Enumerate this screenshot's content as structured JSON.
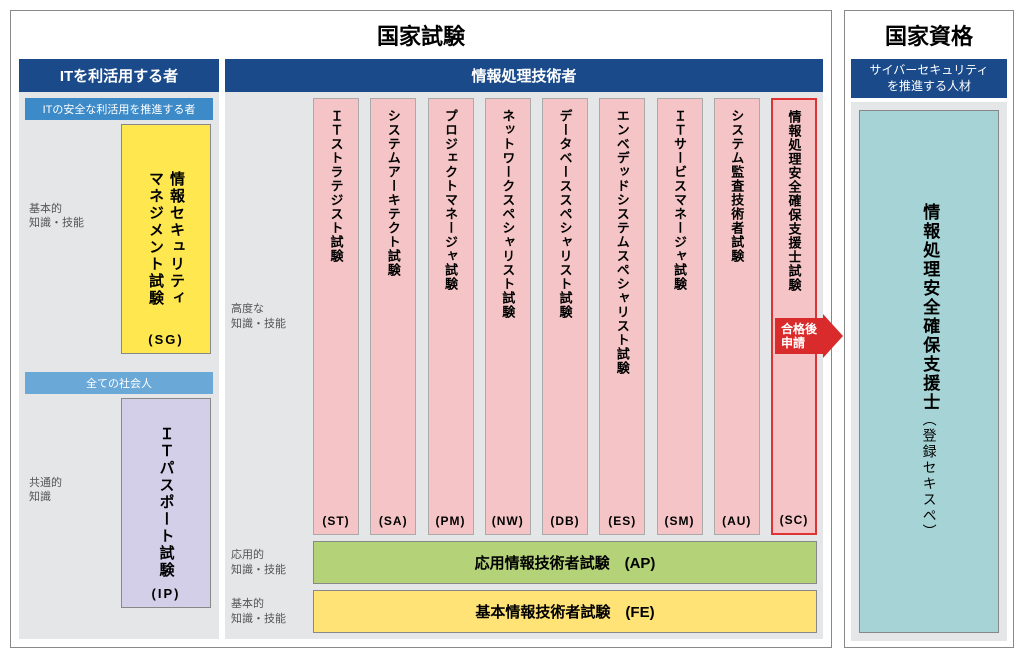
{
  "colors": {
    "header_blue": "#1a4a8a",
    "sub_blue": "#3d8ac9",
    "panel_gray": "#e5e6e8",
    "yellow": "#ffe84f",
    "lilac": "#d4cfe8",
    "pink": "#f5c4c6",
    "green": "#b4d278",
    "yellow2": "#ffe377",
    "cyan": "#a6d4d6",
    "arrow_red": "#d92b2b",
    "sc_border": "#d33"
  },
  "left": {
    "title": "国家試験",
    "user_col": {
      "header": "ITを利活用する者",
      "sub1": "ITの安全な利活用を推進する者",
      "label1": "基本的\n知識・技能",
      "sg": {
        "name": "情報セキュリティ\nマネジメント試験",
        "code": "(SG)"
      },
      "sub2": "全ての社会人",
      "label2": "共通的\n知識",
      "ip": {
        "name": "ＩＴパスポート試験",
        "code": "(IP)"
      }
    },
    "tech_col": {
      "header": "情報処理技術者",
      "adv_label": "高度な\n知識・技能",
      "advanced": [
        {
          "name": "ＩＴストラテジスト試験",
          "code": "(ST)"
        },
        {
          "name": "システムアーキテクト試験",
          "code": "(SA)"
        },
        {
          "name": "プロジェクトマネージャ試験",
          "code": "(PM)"
        },
        {
          "name": "ネットワークスペシャリスト試験",
          "code": "(NW)"
        },
        {
          "name": "データベーススペシャリスト試験",
          "code": "(DB)"
        },
        {
          "name": "エンベデッドシステムスペシャリスト試験",
          "code": "(ES)"
        },
        {
          "name": "ＩＴサービスマネージャ試験",
          "code": "(SM)"
        },
        {
          "name": "システム監査技術者試験",
          "code": "(AU)"
        },
        {
          "name": "情報処理安全確保支援士試験",
          "code": "(SC)",
          "highlight": true
        }
      ],
      "ap": {
        "label": "応用的\n知識・技能",
        "name": "応用情報技術者試験　(AP)"
      },
      "fe": {
        "label": "基本的\n知識・技能",
        "name": "基本情報技術者試験　(FE)"
      },
      "arrow": "合格後\n申請"
    }
  },
  "right": {
    "title": "国家資格",
    "sub": "サイバーセキュリティ\nを推進する人材",
    "riss": {
      "name": "情報処理安全確保支援士",
      "sub": "（登録セキスペ）"
    }
  }
}
